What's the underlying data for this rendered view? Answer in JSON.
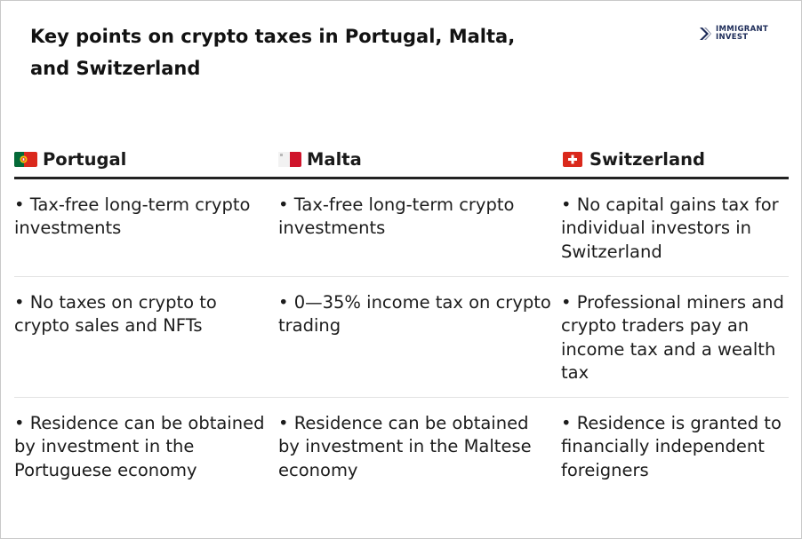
{
  "title": "Key points on crypto taxes in Portugal, Malta, and Switzerland",
  "logo": {
    "line1": "IMMIGRANT",
    "line2": "INVEST",
    "icon": "chevron-logo-icon"
  },
  "columns": [
    {
      "name": "Portugal",
      "flag": "portugal-flag-icon"
    },
    {
      "name": "Malta",
      "flag": "malta-flag-icon"
    },
    {
      "name": "Switzerland",
      "flag": "switzerland-flag-icon"
    }
  ],
  "rows": [
    [
      "• Tax-free long-term crypto investments",
      "• Tax-free long-term crypto investments",
      "• No capital gains tax for individual investors in Switzerland"
    ],
    [
      "• No taxes on crypto to crypto sales and NFTs",
      "• 0—35% income tax on crypto trading",
      "• Professional miners and crypto traders pay an income tax and a wealth tax"
    ],
    [
      "• Residence can be obtained by investment in the Portuguese economy",
      "• Residence can be obtained by investment in the Maltese economy",
      "• Residence is granted to financially independent foreigners"
    ]
  ],
  "colors": {
    "portugal_green": "#046a38",
    "portugal_red": "#da291c",
    "malta_red": "#cf142b",
    "swiss_red": "#da291c",
    "logo_navy": "#1b2a57"
  }
}
